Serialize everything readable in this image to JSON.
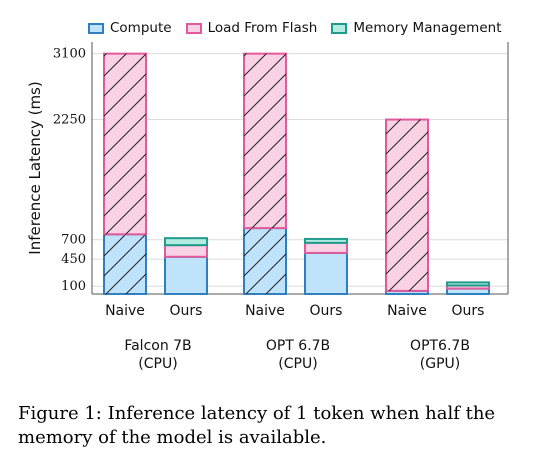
{
  "chart_data": {
    "type": "bar",
    "stacked": true,
    "groups": [
      {
        "name": "Falcon 7B",
        "subtitle": "(CPU)"
      },
      {
        "name": "OPT 6.7B",
        "subtitle": "(CPU)"
      },
      {
        "name": "OPT6.7B",
        "subtitle": "(GPU)"
      }
    ],
    "bar_labels": [
      "Naive",
      "Ours"
    ],
    "series": [
      {
        "name": "Compute",
        "color": "#2f7fc1",
        "fill": "#bfe3fb",
        "values": [
          [
            770,
            480
          ],
          [
            850,
            530
          ],
          [
            40,
            70
          ]
        ]
      },
      {
        "name": "Load From Flash",
        "color": "#e05a9c",
        "fill": "#fad2e6",
        "values": [
          [
            2330,
            150
          ],
          [
            2250,
            130
          ],
          [
            2210,
            40
          ]
        ]
      },
      {
        "name": "Memory Management",
        "color": "#1f9c8c",
        "fill": "#b4ece2",
        "values": [
          [
            0,
            90
          ],
          [
            0,
            50
          ],
          [
            0,
            40
          ]
        ]
      }
    ],
    "hatched_bar": "Naive",
    "ylabel": "Inference Latency (ms)",
    "yticks": [
      100,
      450,
      700,
      2250,
      3100
    ],
    "ylim": [
      0,
      3250
    ],
    "grid": "horizontal",
    "legend_position": "top"
  },
  "caption": "Figure 1: Inference latency of 1 token when half the memory of the model is available."
}
